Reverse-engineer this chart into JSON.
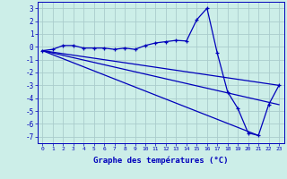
{
  "xlabel": "Graphe des températures (°C)",
  "background_color": "#cceee8",
  "grid_color": "#aacccc",
  "line_color": "#0000bb",
  "xlim": [
    -0.5,
    23.5
  ],
  "ylim": [
    -7.5,
    3.5
  ],
  "yticks": [
    -7,
    -6,
    -5,
    -4,
    -3,
    -2,
    -1,
    0,
    1,
    2,
    3
  ],
  "xticks": [
    0,
    1,
    2,
    3,
    4,
    5,
    6,
    7,
    8,
    9,
    10,
    11,
    12,
    13,
    14,
    15,
    16,
    17,
    18,
    19,
    20,
    21,
    22,
    23
  ],
  "line1_x": [
    0,
    1,
    2,
    3,
    4,
    5,
    6,
    7,
    8,
    9,
    10,
    11,
    12,
    13,
    14,
    15,
    16,
    17,
    18,
    19,
    20,
    21,
    22,
    23
  ],
  "line1_y": [
    -0.3,
    -0.2,
    0.1,
    0.1,
    -0.1,
    -0.1,
    -0.1,
    -0.2,
    -0.1,
    -0.2,
    0.1,
    0.3,
    0.4,
    0.5,
    0.45,
    2.1,
    3.0,
    -0.5,
    -3.5,
    -4.8,
    -6.7,
    -6.9,
    -4.5,
    -3.0
  ],
  "line2_x": [
    0,
    23
  ],
  "line2_y": [
    -0.3,
    -3.0
  ],
  "line3_x": [
    0,
    23
  ],
  "line3_y": [
    -0.3,
    -4.5
  ],
  "line4_x": [
    0,
    21
  ],
  "line4_y": [
    -0.3,
    -6.9
  ]
}
